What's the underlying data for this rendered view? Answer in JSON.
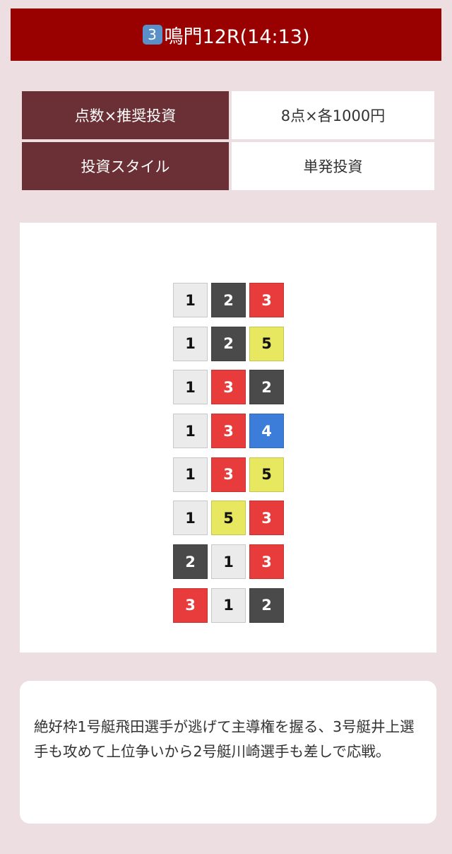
{
  "header": {
    "badge": "3",
    "title": "鳴門12R(14:13)"
  },
  "info": [
    {
      "label": "点数×推奨投資",
      "value": "8点×各1000円"
    },
    {
      "label": "投資スタイル",
      "value": "単発投資"
    }
  ],
  "combos": [
    [
      1,
      2,
      3
    ],
    [
      1,
      2,
      5
    ],
    [
      1,
      3,
      2
    ],
    [
      1,
      3,
      4
    ],
    [
      1,
      3,
      5
    ],
    [
      1,
      5,
      3
    ],
    [
      2,
      1,
      3
    ],
    [
      3,
      1,
      2
    ]
  ],
  "boat_colors": {
    "1": "#ebebeb",
    "2": "#4a4a4a",
    "3": "#e83c3c",
    "4": "#3b7dd8",
    "5": "#e8e860"
  },
  "comment": "絶好枠1号艇飛田選手が逃げて主導権を握る、3号艇井上選手も攻めて上位争いから2号艇川崎選手も差しで応戦。"
}
